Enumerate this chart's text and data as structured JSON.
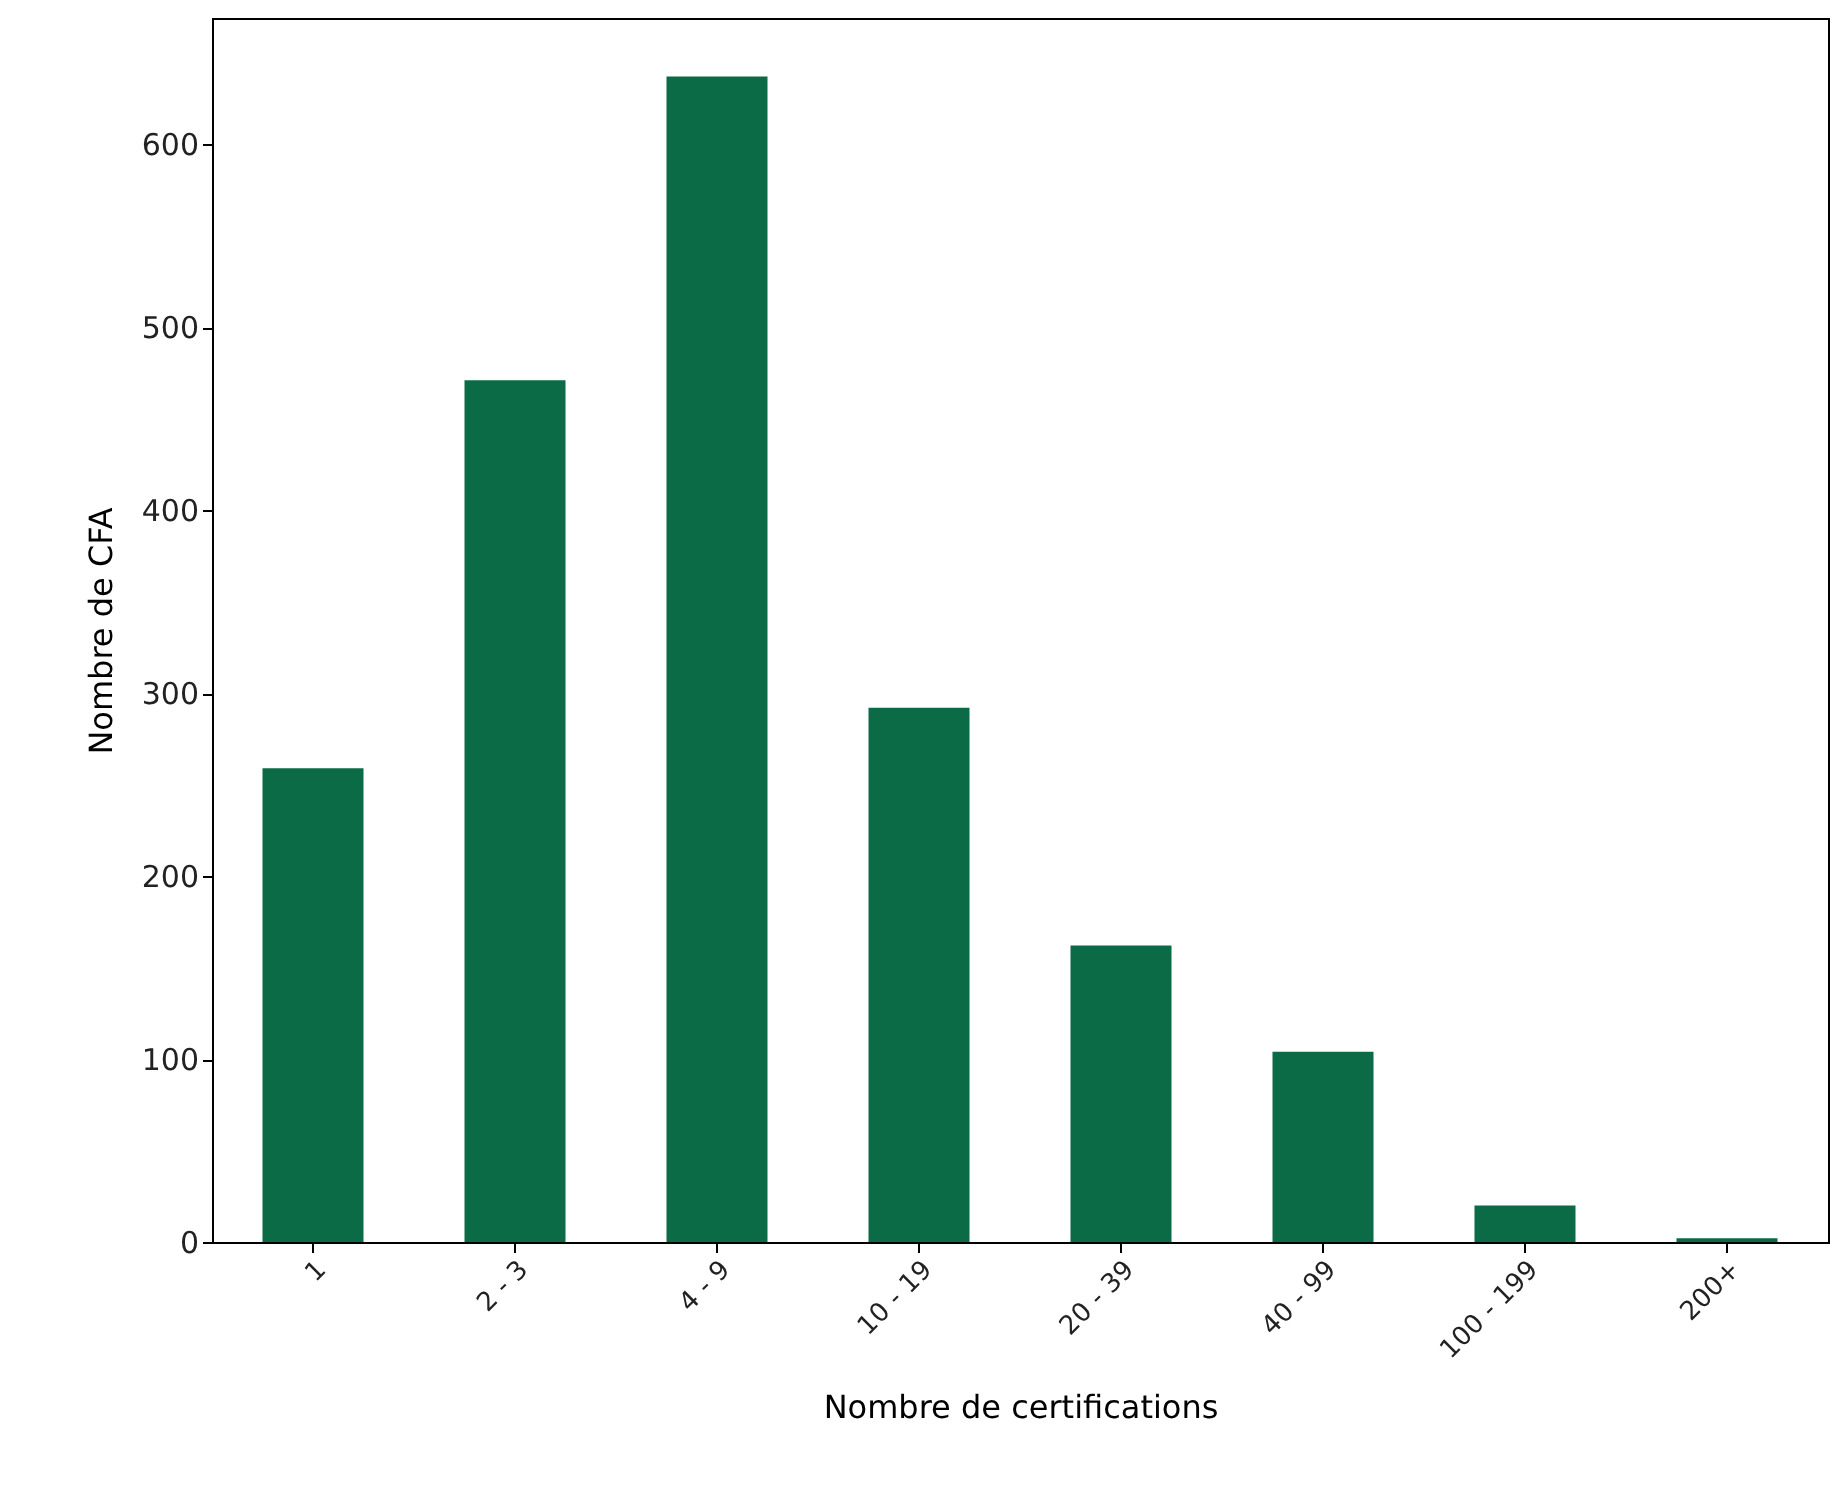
{
  "chart_data": {
    "type": "bar",
    "xlabel": "Nombre de certifications",
    "ylabel": "Nombre de CFA",
    "categories": [
      "1",
      "2 - 3",
      "4 - 9",
      "10 - 19",
      "20 - 39",
      "40 - 99",
      "100 - 199",
      "200+"
    ],
    "values": [
      259,
      471,
      637,
      292,
      162,
      104,
      20,
      2
    ],
    "color": "#0b6b47",
    "ylim": [
      0,
      669
    ],
    "yticks": [
      0,
      100,
      200,
      300,
      400,
      500,
      600
    ],
    "grid": false
  }
}
